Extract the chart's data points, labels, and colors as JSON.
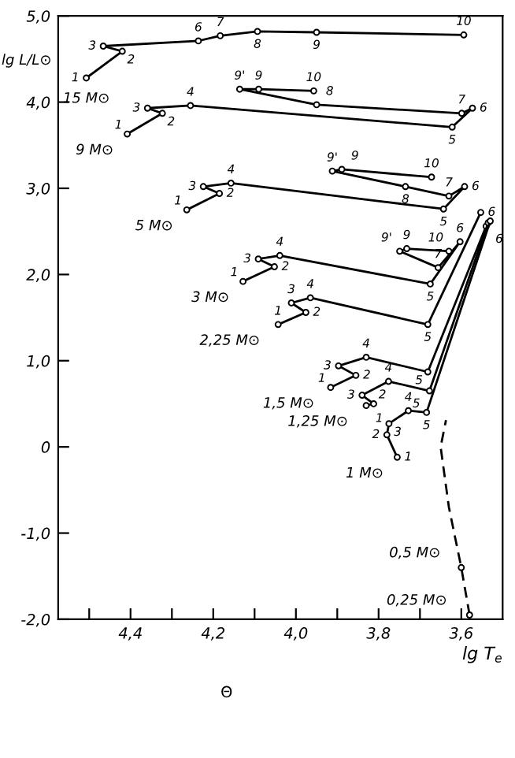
{
  "chart_data": {
    "type": "line",
    "xlabel": "lg T$_{e}$",
    "ylabel": "lg L/L⊙",
    "xlim": [
      4.575,
      3.5
    ],
    "ylim": [
      -2.0,
      5.0
    ],
    "xticks": [
      {
        "value": 4.5,
        "label": null
      },
      {
        "value": 4.4,
        "label": "4,4"
      },
      {
        "value": 4.3,
        "label": null
      },
      {
        "value": 4.2,
        "label": "4,2"
      },
      {
        "value": 4.1,
        "label": null
      },
      {
        "value": 4.0,
        "label": "4,0"
      },
      {
        "value": 3.9,
        "label": null
      },
      {
        "value": 3.8,
        "label": "3,8"
      },
      {
        "value": 3.7,
        "label": null
      },
      {
        "value": 3.6,
        "label": "3,6"
      }
    ],
    "yticks": [
      {
        "value": -2,
        "label": "-2,0"
      },
      {
        "value": -1,
        "label": "-1,0"
      },
      0,
      {
        "value": 1,
        "label": "1,0"
      },
      {
        "value": 2,
        "label": "2,0"
      },
      {
        "value": 3,
        "label": "3,0"
      },
      {
        "value": 4,
        "label": "4,0"
      },
      {
        "value": 5,
        "label": "5,0"
      }
    ],
    "grid": false,
    "legend": false,
    "marker": "circle",
    "line_style": "solid",
    "series": [
      {
        "name": "15 M⊙",
        "color": "#000000",
        "x": [
          4.507,
          4.42,
          4.466,
          4.236,
          4.183,
          4.093,
          3.95,
          3.594
        ],
        "values": [
          4.28,
          4.59,
          4.65,
          4.71,
          4.77,
          4.82,
          4.81,
          4.78
        ]
      },
      {
        "name": "9 M⊙",
        "color": "#000000",
        "x": [
          4.408,
          4.323,
          4.359,
          4.255,
          3.622,
          3.573,
          3.599,
          3.95,
          4.136,
          4.09,
          3.957
        ],
        "values": [
          3.63,
          3.87,
          3.93,
          3.96,
          3.71,
          3.93,
          3.87,
          3.97,
          4.15,
          4.15,
          4.13
        ]
      },
      {
        "name": "5 M⊙",
        "color": "#000000",
        "x": [
          4.264,
          4.185,
          4.224,
          4.157,
          3.643,
          3.592,
          3.63,
          3.735,
          3.912,
          3.889,
          3.672
        ],
        "values": [
          2.75,
          2.94,
          3.02,
          3.06,
          2.76,
          3.02,
          2.91,
          3.02,
          3.2,
          3.22,
          3.13
        ]
      },
      {
        "name": "3 M⊙",
        "color": "#000000",
        "x": [
          4.128,
          4.052,
          4.091,
          4.039,
          3.675,
          3.603,
          3.656,
          3.749,
          3.732,
          3.63
        ],
        "values": [
          1.92,
          2.09,
          2.18,
          2.22,
          1.89,
          2.38,
          2.08,
          2.27,
          2.3,
          2.27
        ]
      },
      {
        "name": "2,25 M⊙",
        "color": "#000000",
        "x": [
          4.043,
          3.976,
          4.011,
          3.965,
          3.681,
          3.553
        ],
        "values": [
          1.42,
          1.56,
          1.67,
          1.73,
          1.42,
          2.72
        ]
      },
      {
        "name": "1,5 M⊙",
        "color": "#000000",
        "x": [
          3.916,
          3.855,
          3.897,
          3.83,
          3.681,
          3.54
        ],
        "values": [
          0.69,
          0.83,
          0.94,
          1.04,
          0.87,
          2.56
        ]
      },
      {
        "name": "1,25 M⊙",
        "color": "#000000",
        "x": [
          3.83,
          3.812,
          3.84,
          3.776,
          3.677,
          3.535
        ],
        "values": [
          0.48,
          0.5,
          0.6,
          0.76,
          0.65,
          2.6
        ]
      },
      {
        "name": "1 M⊙",
        "color": "#000000",
        "x": [
          3.755,
          3.78,
          3.775,
          3.728,
          3.684,
          3.53
        ],
        "values": [
          -0.12,
          0.14,
          0.27,
          0.42,
          0.4,
          2.62
        ]
      },
      {
        "color": "#000000",
        "line_style": "dashed",
        "marker": "none",
        "x": [
          3.58,
          3.6,
          3.63,
          3.65,
          3.637
        ],
        "values": [
          -1.95,
          -1.4,
          -0.7,
          0.0,
          0.31
        ]
      },
      {
        "name": "0,5 M⊙",
        "color": "#000000",
        "type": "scatter",
        "x": [
          3.6
        ],
        "values": [
          -1.4
        ]
      },
      {
        "name": "0,25 M⊙",
        "color": "#000000",
        "type": "scatter",
        "x": [
          3.58
        ],
        "values": [
          -1.95
        ]
      }
    ],
    "annotations": [
      "Θ",
      {
        "text": "1",
        "x": 4.507,
        "y": 4.28
      },
      {
        "text": "2",
        "x": 4.42,
        "y": 4.59
      },
      {
        "text": "3",
        "x": 4.466,
        "y": 4.65
      },
      {
        "text": "6",
        "x": 4.236,
        "y": 4.71
      },
      {
        "text": "7",
        "x": 4.183,
        "y": 4.77
      },
      {
        "text": "8",
        "x": 4.093,
        "y": 4.82
      },
      {
        "text": "9",
        "x": 3.95,
        "y": 4.81
      },
      {
        "text": "10",
        "x": 3.594,
        "y": 4.78
      },
      {
        "text": "1",
        "x": 4.408,
        "y": 3.63
      },
      {
        "text": "2",
        "x": 4.323,
        "y": 3.87
      },
      {
        "text": "3",
        "x": 4.359,
        "y": 3.93
      },
      {
        "text": "4",
        "x": 4.255,
        "y": 3.96
      },
      {
        "text": "5",
        "x": 3.622,
        "y": 3.71
      },
      {
        "text": "6",
        "x": 3.573,
        "y": 3.93
      },
      {
        "text": "7",
        "x": 3.599,
        "y": 3.87
      },
      {
        "text": "8",
        "x": 3.95,
        "y": 3.97
      },
      {
        "text": "9'",
        "x": 4.136,
        "y": 4.15
      },
      {
        "text": "9",
        "x": 4.09,
        "y": 4.15
      },
      {
        "text": "10",
        "x": 3.957,
        "y": 4.13
      },
      {
        "text": "1",
        "x": 4.264,
        "y": 2.75
      },
      {
        "text": "2",
        "x": 4.185,
        "y": 2.94
      },
      {
        "text": "3",
        "x": 4.224,
        "y": 3.02
      },
      {
        "text": "4",
        "x": 4.157,
        "y": 3.06
      },
      {
        "text": "5",
        "x": 3.643,
        "y": 2.76
      },
      {
        "text": "6",
        "x": 3.592,
        "y": 3.02
      },
      {
        "text": "7",
        "x": 3.63,
        "y": 2.91
      },
      {
        "text": "8",
        "x": 3.735,
        "y": 3.02
      },
      {
        "text": "9'",
        "x": 3.912,
        "y": 3.2
      },
      {
        "text": "9",
        "x": 3.889,
        "y": 3.22
      },
      {
        "text": "10",
        "x": 3.672,
        "y": 3.13
      },
      {
        "text": "1",
        "x": 4.128,
        "y": 1.92
      },
      {
        "text": "2",
        "x": 4.052,
        "y": 2.09
      },
      {
        "text": "3",
        "x": 4.091,
        "y": 2.18
      },
      {
        "text": "4",
        "x": 4.039,
        "y": 2.22
      },
      {
        "text": "5",
        "x": 3.675,
        "y": 1.89
      },
      {
        "text": "6",
        "x": 3.603,
        "y": 2.38
      },
      {
        "text": "7",
        "x": 3.656,
        "y": 2.08
      },
      {
        "text": "9'",
        "x": 3.749,
        "y": 2.27
      },
      {
        "text": "9",
        "x": 3.732,
        "y": 2.3
      },
      {
        "text": "10",
        "x": 3.63,
        "y": 2.27
      },
      {
        "text": "1",
        "x": 4.043,
        "y": 1.42
      },
      {
        "text": "2",
        "x": 3.976,
        "y": 1.56
      },
      {
        "text": "3",
        "x": 4.011,
        "y": 1.67
      },
      {
        "text": "4",
        "x": 3.965,
        "y": 1.73
      },
      {
        "text": "5",
        "x": 3.681,
        "y": 1.42
      },
      {
        "text": "6",
        "x": 3.553,
        "y": 2.72
      },
      {
        "text": "1",
        "x": 3.916,
        "y": 0.69
      },
      {
        "text": "2",
        "x": 3.855,
        "y": 0.83
      },
      {
        "text": "3",
        "x": 3.897,
        "y": 0.94
      },
      {
        "text": "4",
        "x": 3.83,
        "y": 1.04
      },
      {
        "text": "5",
        "x": 3.681,
        "y": 0.87
      },
      {
        "text": "6",
        "x": 3.54,
        "y": 2.56
      },
      {
        "text": "1",
        "x": 3.83,
        "y": 0.48
      },
      {
        "text": "2",
        "x": 3.812,
        "y": 0.5
      },
      {
        "text": "3",
        "x": 3.84,
        "y": 0.6
      },
      {
        "text": "4",
        "x": 3.776,
        "y": 0.76
      },
      {
        "text": "5",
        "x": 3.677,
        "y": 0.65
      },
      {
        "text": "1",
        "x": 3.755,
        "y": -0.12
      },
      {
        "text": "2",
        "x": 3.78,
        "y": 0.14
      },
      {
        "text": "3",
        "x": 3.775,
        "y": 0.27
      },
      {
        "text": "4",
        "x": 3.728,
        "y": 0.42
      },
      {
        "text": "5",
        "x": 3.684,
        "y": 0.4
      }
    ]
  }
}
